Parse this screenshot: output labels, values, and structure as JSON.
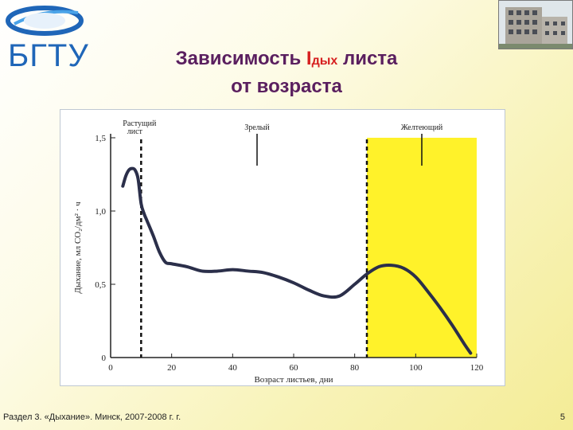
{
  "logo": {
    "text": "БГТУ"
  },
  "title": {
    "line1_prefix": "Зависимость ",
    "var": "I",
    "var_sub": "дых",
    "line1_suffix": " листа",
    "line2": "от возраста"
  },
  "footer": "Раздел 3. «Дыхание». Минск, 2007-2008 г. г.",
  "page_number": "5",
  "colors": {
    "title": "#5a1f5f",
    "accent": "#d62020",
    "logo": "#1f66b8",
    "stage_highlight": "#fff22a",
    "curve": "#2b2f4a"
  },
  "chart_data": {
    "type": "line",
    "xlabel": "Возраст листьев, дни",
    "ylabel": "Дыхание, мл CO₂/дм² · ч",
    "xlim": [
      0,
      120
    ],
    "ylim": [
      0,
      1.5
    ],
    "x_ticks": [
      "0",
      "20",
      "40",
      "60",
      "80",
      "100",
      "120"
    ],
    "y_ticks": [
      "0",
      "0,5",
      "1,0",
      "1,5"
    ],
    "stage_labels": [
      {
        "text": "Растущий лист",
        "x": 10
      },
      {
        "text": "Зрелый",
        "x": 48
      },
      {
        "text": "Желтеющий",
        "x": 102
      }
    ],
    "boundaries": [
      10,
      84
    ],
    "highlight_from": 84,
    "x": [
      4,
      5,
      6,
      7,
      8,
      9,
      10,
      11,
      12,
      14,
      16,
      18,
      20,
      25,
      30,
      35,
      40,
      45,
      50,
      55,
      60,
      65,
      70,
      75,
      80,
      84,
      88,
      92,
      96,
      100,
      104,
      108,
      112,
      116,
      118
    ],
    "y": [
      1.17,
      1.24,
      1.28,
      1.29,
      1.28,
      1.22,
      1.05,
      0.98,
      0.93,
      0.83,
      0.72,
      0.65,
      0.64,
      0.62,
      0.59,
      0.59,
      0.6,
      0.59,
      0.58,
      0.55,
      0.51,
      0.46,
      0.42,
      0.42,
      0.5,
      0.57,
      0.62,
      0.63,
      0.61,
      0.55,
      0.45,
      0.34,
      0.22,
      0.09,
      0.03
    ]
  }
}
